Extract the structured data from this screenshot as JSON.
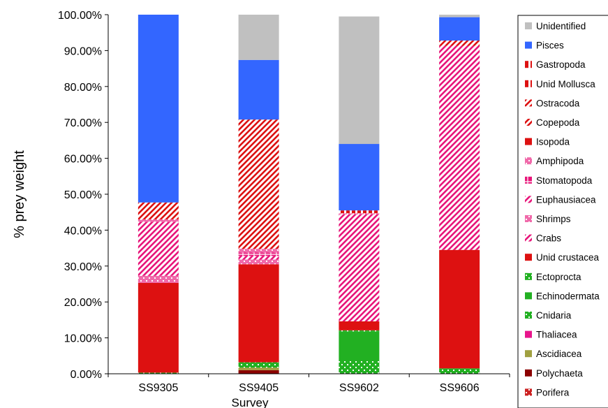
{
  "chart_data": {
    "type": "bar",
    "stacked": true,
    "xlabel": "Survey",
    "ylabel": "% prey weight",
    "ylim": [
      0,
      100
    ],
    "yticks": [
      "0.00%",
      "10.00%",
      "20.00%",
      "30.00%",
      "40.00%",
      "50.00%",
      "60.00%",
      "70.00%",
      "80.00%",
      "90.00%",
      "100.00%"
    ],
    "grid": false,
    "legend_position": "right",
    "categories": [
      "SS9305",
      "SS9405",
      "SS9602",
      "SS9606"
    ],
    "series": [
      {
        "name": "Porifera",
        "color": "#cc2222",
        "pattern": "dots",
        "values": [
          0,
          0,
          0,
          0
        ]
      },
      {
        "name": "Polychaeta",
        "color": "#8b0000",
        "pattern": "solid",
        "values": [
          0,
          1.0,
          0,
          0
        ]
      },
      {
        "name": "Ascidiacea",
        "color": "#a0a040",
        "pattern": "solid",
        "values": [
          0,
          0.7,
          0,
          0
        ]
      },
      {
        "name": "Thaliacea",
        "color": "#e8158c",
        "pattern": "solid",
        "values": [
          0,
          0,
          0,
          0
        ]
      },
      {
        "name": "Cnidaria",
        "color": "#22b022",
        "pattern": "dots",
        "values": [
          0.3,
          1.5,
          3.5,
          1.5
        ]
      },
      {
        "name": "Echinodermata",
        "color": "#22b022",
        "pattern": "solid",
        "values": [
          0,
          0,
          8.3,
          0
        ]
      },
      {
        "name": "Ectoprocta",
        "color": "#22b022",
        "pattern": "dots",
        "values": [
          0,
          0,
          0.3,
          0
        ]
      },
      {
        "name": "Unid crustacea",
        "color": "#dd1111",
        "pattern": "solid",
        "values": [
          25.0,
          27.3,
          2.5,
          33.0
        ]
      },
      {
        "name": "Crabs",
        "color": "#e8157a",
        "pattern": "diagonal",
        "values": [
          0,
          0,
          0,
          0
        ]
      },
      {
        "name": "Shrimps",
        "color": "#f06aaa",
        "pattern": "dots",
        "values": [
          2.0,
          1.3,
          0,
          0
        ]
      },
      {
        "name": "Euphausiacea",
        "color": "#e8157a",
        "pattern": "diagonal",
        "values": [
          15.0,
          1.0,
          29.8,
          56.8
        ]
      },
      {
        "name": "Stomatopoda",
        "color": "#e8157a",
        "pattern": "grid",
        "values": [
          0,
          1.0,
          0,
          0
        ]
      },
      {
        "name": "Amphipoda",
        "color": "#f06aaa",
        "pattern": "dots",
        "values": [
          0.7,
          1.0,
          0.3,
          0
        ]
      },
      {
        "name": "Isopoda",
        "color": "#dd1111",
        "pattern": "solid",
        "values": [
          0,
          0,
          0,
          0
        ]
      },
      {
        "name": "Copepoda",
        "color": "#dd1111",
        "pattern": "diagonal",
        "values": [
          4.7,
          36.0,
          0,
          1.5
        ]
      },
      {
        "name": "Ostracoda",
        "color": "#dd1111",
        "pattern": "diagonal",
        "values": [
          0,
          0,
          0,
          0
        ]
      },
      {
        "name": "Unid Mollusca",
        "color": "#dd1111",
        "pattern": "vertical",
        "values": [
          0,
          0,
          0.8,
          0
        ]
      },
      {
        "name": "Gastropoda",
        "color": "#dd1111",
        "pattern": "vertical",
        "values": [
          0,
          0,
          0,
          0
        ]
      },
      {
        "name": "Pisces",
        "color": "#3366ff",
        "pattern": "solid",
        "values": [
          52.3,
          16.6,
          18.5,
          6.5
        ]
      },
      {
        "name": "Unidentified",
        "color": "#c0c0c0",
        "pattern": "solid",
        "values": [
          0,
          12.6,
          35.5,
          0.7
        ]
      }
    ]
  }
}
